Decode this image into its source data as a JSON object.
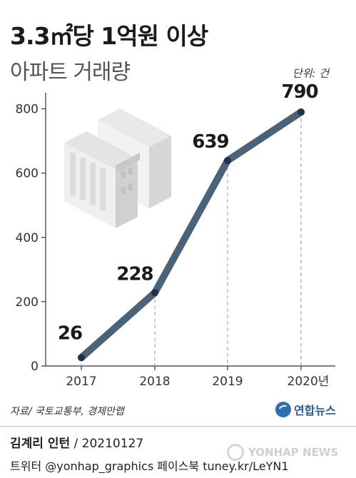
{
  "title": "3.3㎡당 1억원 이상",
  "subtitle": "아파트 거래량",
  "unit": "단위: 건",
  "chart_data": {
    "type": "line",
    "x": [
      "2017",
      "2018",
      "2019",
      "2020년"
    ],
    "series": [
      {
        "values": [
          26,
          228,
          639,
          790
        ],
        "color": "#4a6378"
      }
    ],
    "data_labels": [
      "26",
      "228",
      "639",
      "790"
    ],
    "yticks": [
      "0",
      "200",
      "400",
      "600",
      "800"
    ],
    "ylim": [
      0,
      850
    ],
    "grid": false,
    "dashed_drop_lines": true,
    "illustration": "apartment-buildings-icon"
  },
  "source": "자료/ 국토교통부, 경제만랩",
  "logo": {
    "text": "연합뉴스",
    "icon": "yonhap-logo-icon",
    "color": "#2a5aa0"
  },
  "credit": {
    "author": "김계리 인턴",
    "date": " / 20210127"
  },
  "social": "트위터 @yonhap_graphics  페이스북 tuney.kr/LeYN1",
  "watermark": "YONHAP NEWS"
}
